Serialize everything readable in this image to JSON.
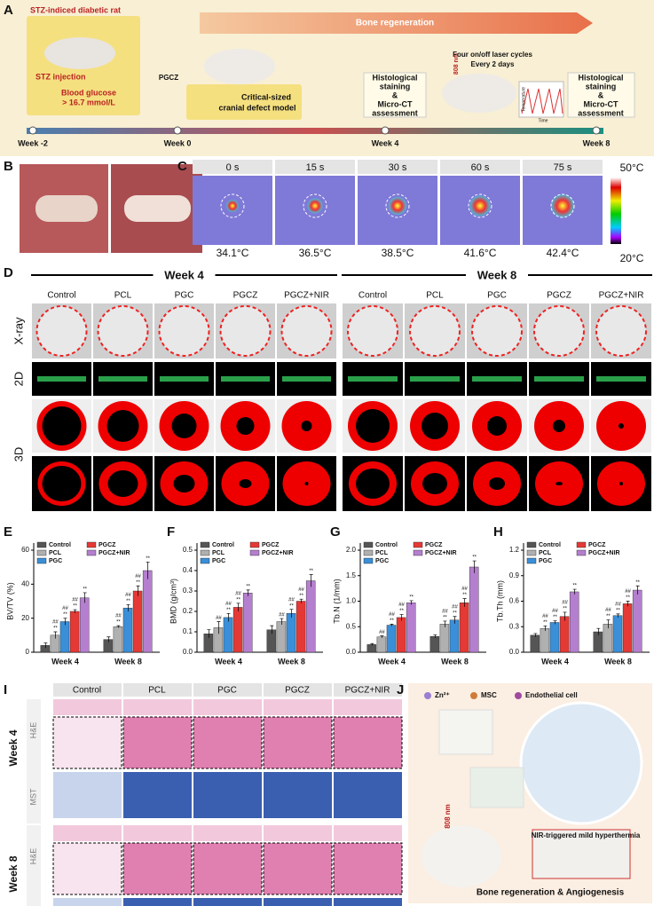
{
  "panel_a": {
    "panel_label": "A",
    "rat_title": "STZ-indiced diabetic  rat",
    "injection": "STZ injection",
    "glucose": [
      "Blood glucose",
      "> 16.7 mmol/L"
    ],
    "scaffold": "PGCZ",
    "defect": [
      "Critical-sized",
      "cranial defect model"
    ],
    "regeneration": "Bone regeneration",
    "assessment_1": [
      "Histological",
      "staining",
      "&",
      "Micro-CT",
      "assessment"
    ],
    "laser": "808 nm",
    "cycles": [
      "Four on/off laser cycles",
      "Every 2 days"
    ],
    "temp_axis": "Temperature",
    "time_axis": "Time",
    "assessment_2": [
      "Histological",
      "staining",
      "&",
      "Micro-CT",
      "assessment"
    ],
    "timeline": [
      "Week -2",
      "Week 0",
      "Week 4",
      "Week 8"
    ]
  },
  "panel_b": {
    "panel_label": "B"
  },
  "panel_c": {
    "panel_label": "C",
    "times": [
      "0 s",
      "15 s",
      "30 s",
      "60 s",
      "75 s"
    ],
    "temperatures": [
      "34.1°C",
      "36.5°C",
      "38.5°C",
      "41.6°C",
      "42.4°C"
    ],
    "scale_max": "50°C",
    "scale_min": "20°C"
  },
  "panel_d": {
    "panel_label": "D",
    "weeks": [
      "Week 4",
      "Week 8"
    ],
    "groups": [
      "Control",
      "PCL",
      "PGC",
      "PGCZ",
      "PGCZ+NIR"
    ],
    "rows": [
      "X-ray",
      "2D",
      "3D"
    ]
  },
  "chart_data": [
    {
      "type": "bar",
      "panel_label": "E",
      "y_label": "BV/TV (%)",
      "categories": [
        "Week 4",
        "Week 8"
      ],
      "ylim": [
        0,
        60
      ],
      "yticks": [
        0,
        20,
        40,
        60
      ],
      "series": [
        {
          "name": "Control",
          "color": "#555555",
          "values": [
            4,
            7.5
          ],
          "errors": [
            1.5,
            1.5
          ]
        },
        {
          "name": "PCL",
          "color": "#b0b0b0",
          "values": [
            10,
            15
          ],
          "errors": [
            2,
            0.6
          ],
          "sig": [
            [
              "**",
              "##"
            ],
            [
              "**",
              "##"
            ]
          ]
        },
        {
          "name": "PGC",
          "color": "#3a8fd8",
          "values": [
            18,
            26
          ],
          "errors": [
            2,
            2
          ],
          "sig": [
            [
              "**",
              "##"
            ],
            [
              "**",
              "##"
            ]
          ]
        },
        {
          "name": "PGCZ",
          "color": "#e53935",
          "values": [
            24,
            36
          ],
          "errors": [
            1,
            3
          ],
          "sig": [
            [
              "**",
              "##"
            ],
            [
              "**",
              "##"
            ]
          ]
        },
        {
          "name": "PGCZ+NIR",
          "color": "#b57fcf",
          "values": [
            32,
            48
          ],
          "errors": [
            3,
            5
          ],
          "sig": [
            [
              "**"
            ],
            [
              "**"
            ]
          ]
        }
      ]
    },
    {
      "type": "bar",
      "panel_label": "F",
      "y_label": "BMD (g/cm³)",
      "categories": [
        "Week 4",
        "Week 8"
      ],
      "ylim": [
        0,
        0.5
      ],
      "yticks": [
        {
          "value": 0,
          "label": "0.0"
        },
        0.1,
        0.2,
        0.3,
        0.4,
        0.5
      ],
      "series": [
        {
          "name": "Control",
          "color": "#555555",
          "values": [
            0.09,
            0.11
          ],
          "errors": [
            0.02,
            0.02
          ]
        },
        {
          "name": "PCL",
          "color": "#b0b0b0",
          "values": [
            0.12,
            0.15
          ],
          "errors": [
            0.03,
            0.015
          ],
          "sig": [
            [
              "##"
            ],
            [
              "##"
            ]
          ]
        },
        {
          "name": "PGC",
          "color": "#3a8fd8",
          "values": [
            0.17,
            0.19
          ],
          "errors": [
            0.02,
            0.02
          ],
          "sig": [
            [
              "**",
              "##"
            ],
            [
              "**",
              "##"
            ]
          ]
        },
        {
          "name": "PGCZ",
          "color": "#e53935",
          "values": [
            0.22,
            0.25
          ],
          "errors": [
            0.02,
            0.01
          ],
          "sig": [
            [
              "**",
              "##"
            ],
            [
              "**",
              "##"
            ]
          ]
        },
        {
          "name": "PGCZ+NIR",
          "color": "#b57fcf",
          "values": [
            0.29,
            0.35
          ],
          "errors": [
            0.015,
            0.03
          ],
          "sig": [
            [
              "**"
            ],
            [
              "**"
            ]
          ]
        }
      ]
    },
    {
      "type": "bar",
      "panel_label": "G",
      "y_label": "Tb.N (1/mm)",
      "categories": [
        "Week 4",
        "Week 8"
      ],
      "ylim": [
        0,
        2
      ],
      "yticks": [
        {
          "value": 0,
          "label": "0.0"
        },
        0.5,
        {
          "value": 1,
          "label": "1.0"
        },
        1.5,
        {
          "value": 2,
          "label": "2.0"
        }
      ],
      "series": [
        {
          "name": "Control",
          "color": "#555555",
          "values": [
            0.15,
            0.31
          ],
          "errors": [
            0.02,
            0.03
          ]
        },
        {
          "name": "PCL",
          "color": "#b0b0b0",
          "values": [
            0.3,
            0.55
          ],
          "errors": [
            0.02,
            0.06
          ],
          "sig": [
            [
              "##"
            ],
            [
              "**",
              "##"
            ]
          ]
        },
        {
          "name": "PGC",
          "color": "#3a8fd8",
          "values": [
            0.53,
            0.63
          ],
          "errors": [
            0.02,
            0.07
          ],
          "sig": [
            [
              "**",
              "##"
            ],
            [
              "**",
              "##"
            ]
          ]
        },
        {
          "name": "PGCZ",
          "color": "#e53935",
          "values": [
            0.68,
            0.97
          ],
          "errors": [
            0.06,
            0.08
          ],
          "sig": [
            [
              "**",
              "##"
            ],
            [
              "**",
              "##"
            ]
          ]
        },
        {
          "name": "PGCZ+NIR",
          "color": "#b57fcf",
          "values": [
            0.97,
            1.67
          ],
          "errors": [
            0.04,
            0.12
          ],
          "sig": [
            [
              "**"
            ],
            [
              "**"
            ]
          ]
        }
      ]
    },
    {
      "type": "bar",
      "panel_label": "H",
      "y_label": "Tb.Th (mm)",
      "categories": [
        "Week 4",
        "Week 8"
      ],
      "ylim": [
        0,
        1.2
      ],
      "yticks": [
        {
          "value": 0,
          "label": "0.0"
        },
        0.3,
        0.6,
        0.9,
        1.2
      ],
      "series": [
        {
          "name": "Control",
          "color": "#555555",
          "values": [
            0.2,
            0.24
          ],
          "errors": [
            0.02,
            0.04
          ]
        },
        {
          "name": "PCL",
          "color": "#b0b0b0",
          "values": [
            0.28,
            0.33
          ],
          "errors": [
            0.03,
            0.05
          ],
          "sig": [
            [
              "**",
              "##"
            ],
            [
              "**",
              "##"
            ]
          ]
        },
        {
          "name": "PGC",
          "color": "#3a8fd8",
          "values": [
            0.35,
            0.43
          ],
          "errors": [
            0.02,
            0.02
          ],
          "sig": [
            [
              "**",
              "##"
            ],
            [
              "**",
              "##"
            ]
          ]
        },
        {
          "name": "PGCZ",
          "color": "#e53935",
          "values": [
            0.42,
            0.57
          ],
          "errors": [
            0.05,
            0.03
          ],
          "sig": [
            [
              "**",
              "##"
            ],
            [
              "**",
              "##"
            ]
          ]
        },
        {
          "name": "PGCZ+NIR",
          "color": "#b57fcf",
          "values": [
            0.71,
            0.73
          ],
          "errors": [
            0.03,
            0.05
          ],
          "sig": [
            [
              "**"
            ],
            [
              "**"
            ]
          ]
        }
      ]
    }
  ],
  "panel_i": {
    "panel_label": "I",
    "groups": [
      "Control",
      "PCL",
      "PGC",
      "PGCZ",
      "PGCZ+NIR"
    ],
    "weeks": [
      "Week 4",
      "Week 8"
    ],
    "stains": [
      "H&E",
      "MST"
    ]
  },
  "panel_j": {
    "panel_label": "J",
    "legend": [
      "Zn²⁺",
      "MSC",
      "Endothelial cell"
    ],
    "laser": "808 nm",
    "nir": "NIR-triggered mild hyperthermia",
    "outcome": "Bone regeneration & Angiogenesis"
  }
}
